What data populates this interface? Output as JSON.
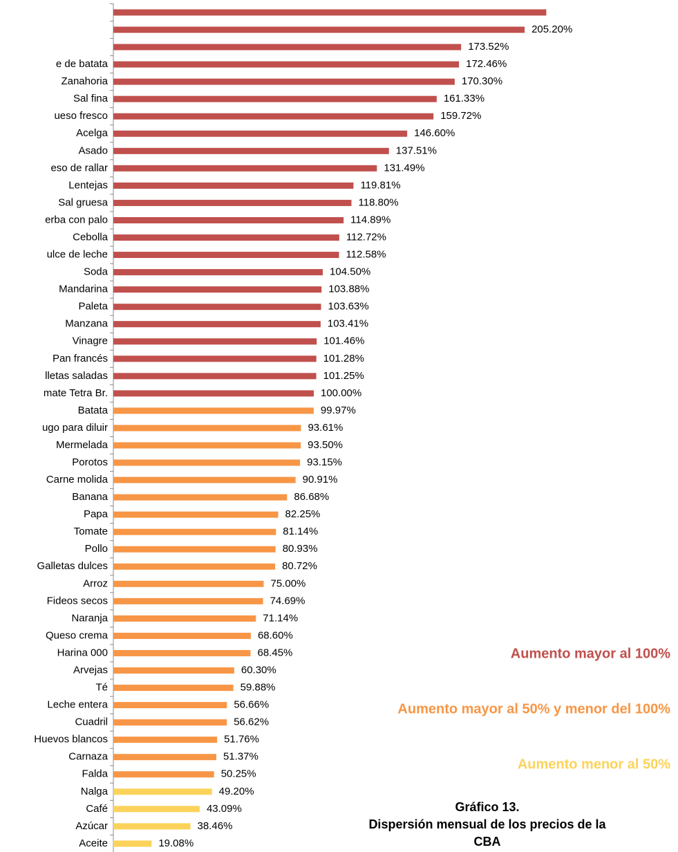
{
  "chart_data": {
    "type": "bar",
    "orientation": "horizontal",
    "title_lines": [
      "Gráfico 13.",
      "Dispersión mensual de los precios de la",
      "CBA"
    ],
    "categories": [
      null,
      null,
      null,
      "e de batata",
      "Zanahoria",
      "Sal fina",
      "ueso fresco",
      "Acelga",
      "Asado",
      "eso de rallar",
      "Lentejas",
      "Sal gruesa",
      "erba con palo",
      "Cebolla",
      "ulce de leche",
      "Soda",
      "Mandarina",
      "Paleta",
      "Manzana",
      "Vinagre",
      "Pan francés",
      "lletas saladas",
      "mate Tetra Br.",
      "Batata",
      "ugo para diluir",
      "Mermelada",
      "Porotos",
      "Carne molida",
      "Banana",
      "Papa",
      "Tomate",
      "Pollo",
      "Galletas dulces",
      "Arroz",
      "Fideos secos",
      "Naranja",
      "Queso crema",
      "Harina 000",
      "Arvejas",
      "Té",
      "Leche entera",
      "Cuadril",
      "Huevos blancos",
      "Carnaza",
      "Falda",
      "Nalga",
      "Café",
      "Azúcar",
      "Aceite"
    ],
    "values": [
      216,
      205.2,
      173.52,
      172.46,
      170.3,
      161.33,
      159.72,
      146.6,
      137.51,
      131.49,
      119.81,
      118.8,
      114.89,
      112.72,
      112.58,
      104.5,
      103.88,
      103.63,
      103.41,
      101.46,
      101.28,
      101.25,
      100,
      99.97,
      93.61,
      93.5,
      93.15,
      90.91,
      86.68,
      82.25,
      81.14,
      80.93,
      80.72,
      75,
      74.69,
      71.14,
      68.6,
      68.45,
      60.3,
      59.88,
      56.66,
      56.62,
      51.76,
      51.37,
      50.25,
      49.2,
      43.09,
      38.46,
      19.08
    ],
    "value_labels": [
      null,
      "205.20%",
      "173.52%",
      "172.46%",
      "170.30%",
      "161.33%",
      "159.72%",
      "146.60%",
      "137.51%",
      "131.49%",
      "119.81%",
      "118.80%",
      "114.89%",
      "112.72%",
      "112.58%",
      "104.50%",
      "103.88%",
      "103.63%",
      "103.41%",
      "101.46%",
      "101.28%",
      "101.25%",
      "100.00%",
      "99.97%",
      "93.61%",
      "93.50%",
      "93.15%",
      "90.91%",
      "86.68%",
      "82.25%",
      "81.14%",
      "80.93%",
      "80.72%",
      "75.00%",
      "74.69%",
      "71.14%",
      "68.60%",
      "68.45%",
      "60.30%",
      "59.88%",
      "56.66%",
      "56.62%",
      "51.76%",
      "51.37%",
      "50.25%",
      "49.20%",
      "43.09%",
      "38.46%",
      "19.08%"
    ],
    "colors": [
      "#c0504d",
      "#c0504d",
      "#c0504d",
      "#c0504d",
      "#c0504d",
      "#c0504d",
      "#c0504d",
      "#c0504d",
      "#c0504d",
      "#c0504d",
      "#c0504d",
      "#c0504d",
      "#c0504d",
      "#c0504d",
      "#c0504d",
      "#c0504d",
      "#c0504d",
      "#c0504d",
      "#c0504d",
      "#c0504d",
      "#c0504d",
      "#c0504d",
      "#c0504d",
      "#f79646",
      "#f79646",
      "#f79646",
      "#f79646",
      "#f79646",
      "#f79646",
      "#f79646",
      "#f79646",
      "#f79646",
      "#f79646",
      "#f79646",
      "#f79646",
      "#f79646",
      "#f79646",
      "#f79646",
      "#f79646",
      "#f79646",
      "#f79646",
      "#f79646",
      "#f79646",
      "#f79646",
      "#f79646",
      "#fcd35a",
      "#fcd35a",
      "#fcd35a",
      "#fcd35a"
    ],
    "legend": [
      {
        "label": "Aumento mayor al 100%",
        "color": "#c0504d"
      },
      {
        "label": "Aumento mayor al 50% y menor del 100%",
        "color": "#f79646"
      },
      {
        "label": "Aumento menor al 50%",
        "color": "#fcd35a"
      }
    ]
  }
}
